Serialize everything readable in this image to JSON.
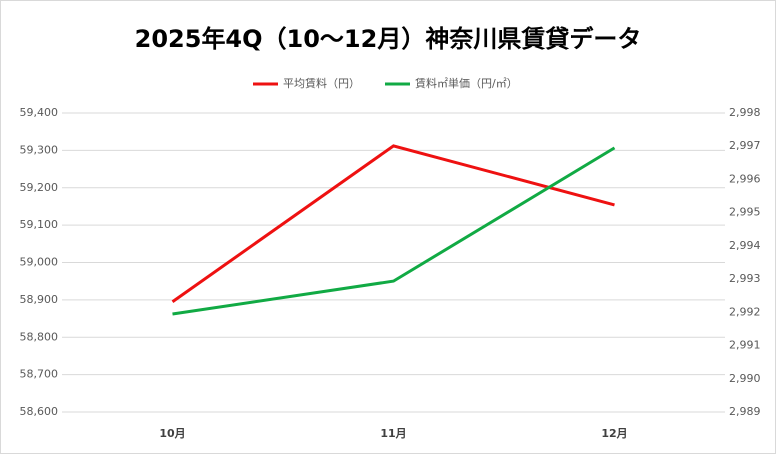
{
  "chart_data": {
    "type": "line",
    "title": "2025年4Q（10～12月）神奈川県賃貸データ",
    "categories": [
      "10月",
      "11月",
      "12月"
    ],
    "series": [
      {
        "name": "平均賃料（円）",
        "color": "#ee1111",
        "values": [
          58895,
          59312,
          59154
        ]
      },
      {
        "name": "賃料㎡単価（円/㎡）",
        "color": "#11aa44",
        "axis": "y2",
        "values": [
          2991.95,
          2992.94,
          2996.95
        ]
      }
    ],
    "ylim": [
      58600,
      59400
    ],
    "yticks": [
      {
        "value": 58600,
        "label": "58,600"
      },
      {
        "value": 58700,
        "label": "58,700"
      },
      {
        "value": 58800,
        "label": "58,800"
      },
      {
        "value": 58900,
        "label": "58,900"
      },
      {
        "value": 59000,
        "label": "59,000"
      },
      {
        "value": 59100,
        "label": "59,100"
      },
      {
        "value": 59200,
        "label": "59,200"
      },
      {
        "value": 59300,
        "label": "59,300"
      },
      {
        "value": 59400,
        "label": "59,400"
      }
    ],
    "y2lim": [
      2989,
      2998
    ],
    "y2ticks": [
      {
        "value": 2989,
        "label": "2,989"
      },
      {
        "value": 2990,
        "label": "2,990"
      },
      {
        "value": 2991,
        "label": "2,991"
      },
      {
        "value": 2992,
        "label": "2,992"
      },
      {
        "value": 2993,
        "label": "2,993"
      },
      {
        "value": 2994,
        "label": "2,994"
      },
      {
        "value": 2995,
        "label": "2,995"
      },
      {
        "value": 2996,
        "label": "2,996"
      },
      {
        "value": 2997,
        "label": "2,997"
      },
      {
        "value": 2998,
        "label": "2,998"
      }
    ],
    "grid": true,
    "legend": "top"
  }
}
